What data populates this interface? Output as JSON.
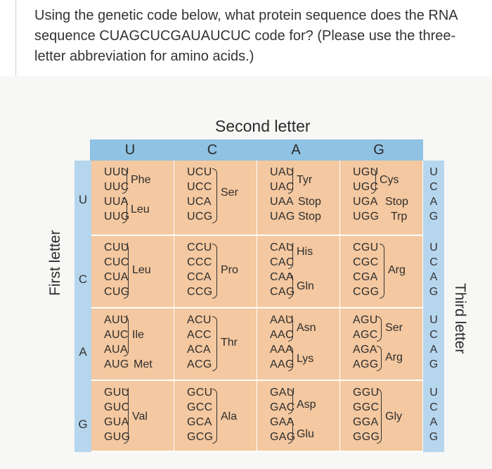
{
  "question": "Using the genetic code below, what protein sequence does the RNA sequence CUAGCUCGAUAUCUC code for? (Please use the three-letter abbreviation for amino acids.)",
  "table": {
    "second_letter_label": "Second letter",
    "first_letter_label": "First letter",
    "third_letter_label": "Third letter",
    "second_bases": [
      "U",
      "C",
      "A",
      "G"
    ],
    "first_bases": [
      "U",
      "C",
      "A",
      "G"
    ],
    "third_bases": [
      "U",
      "C",
      "A",
      "G"
    ],
    "rows": [
      {
        "first": "U",
        "blocks": [
          {
            "codons": [
              "UUU",
              "UUC",
              "UUA",
              "UUG"
            ],
            "labels": [
              "Phe",
              "Leu"
            ]
          },
          {
            "codons": [
              "UCU",
              "UCC",
              "UCA",
              "UCG"
            ],
            "labels": [
              "Ser"
            ]
          },
          {
            "codons": [
              "UAU",
              "UAC",
              "UAA",
              "UAG"
            ],
            "labels": [
              "Tyr",
              "Stop",
              "Stop"
            ]
          },
          {
            "codons": [
              "UGU",
              "UGC",
              "UGA",
              "UGG"
            ],
            "labels": [
              "Cys",
              "Stop",
              "Trp"
            ]
          }
        ]
      },
      {
        "first": "C",
        "blocks": [
          {
            "codons": [
              "CUU",
              "CUC",
              "CUA",
              "CUG"
            ],
            "labels": [
              "Leu"
            ]
          },
          {
            "codons": [
              "CCU",
              "CCC",
              "CCA",
              "CCG"
            ],
            "labels": [
              "Pro"
            ]
          },
          {
            "codons": [
              "CAU",
              "CAC",
              "CAA",
              "CAG"
            ],
            "labels": [
              "His",
              "Gln"
            ]
          },
          {
            "codons": [
              "CGU",
              "CGC",
              "CGA",
              "CGG"
            ],
            "labels": [
              "Arg"
            ]
          }
        ]
      },
      {
        "first": "A",
        "blocks": [
          {
            "codons": [
              "AUU",
              "AUC",
              "AUA",
              "AUG"
            ],
            "labels": [
              "Ile",
              "Met"
            ]
          },
          {
            "codons": [
              "ACU",
              "ACC",
              "ACA",
              "ACG"
            ],
            "labels": [
              "Thr"
            ]
          },
          {
            "codons": [
              "AAU",
              "AAC",
              "AAA",
              "AAG"
            ],
            "labels": [
              "Asn",
              "Lys"
            ]
          },
          {
            "codons": [
              "AGU",
              "AGC",
              "AGA",
              "AGG"
            ],
            "labels": [
              "Ser",
              "Arg"
            ]
          }
        ]
      },
      {
        "first": "G",
        "blocks": [
          {
            "codons": [
              "GUU",
              "GUC",
              "GUA",
              "GUG"
            ],
            "labels": [
              "Val"
            ]
          },
          {
            "codons": [
              "GCU",
              "GCC",
              "GCA",
              "GCG"
            ],
            "labels": [
              "Ala"
            ]
          },
          {
            "codons": [
              "GAU",
              "GAC",
              "GAA",
              "GAG"
            ],
            "labels": [
              "Asp",
              "Glu"
            ]
          },
          {
            "codons": [
              "GGU",
              "GGC",
              "GGA",
              "GGG"
            ],
            "labels": [
              "Gly"
            ]
          }
        ]
      }
    ]
  },
  "colors": {
    "header_blue": "#8fc2e3",
    "side_blue": "#b6d6ee",
    "cell_orange": "#f4c8a0"
  }
}
